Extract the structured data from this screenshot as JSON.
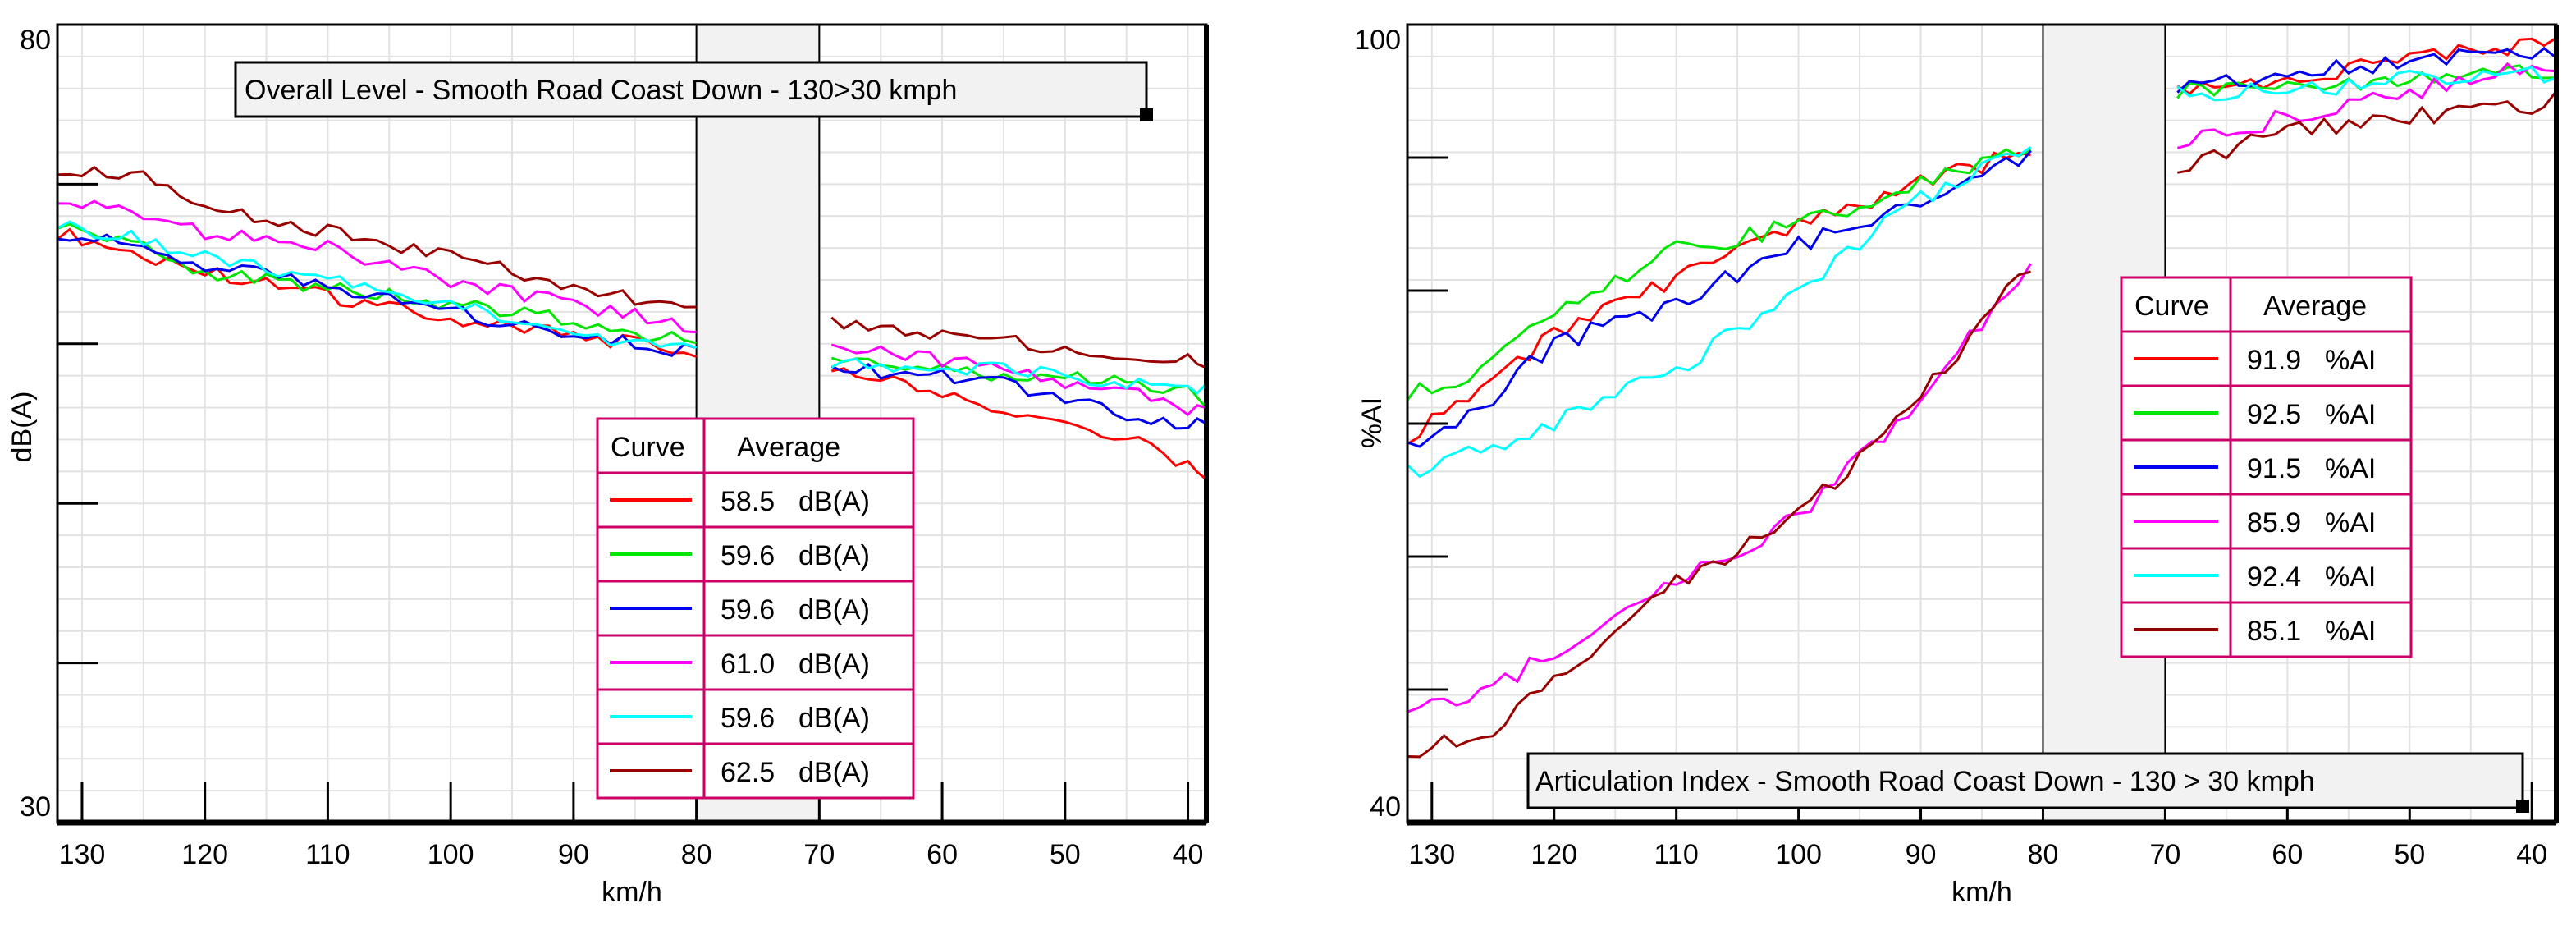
{
  "chart_data": [
    {
      "type": "line",
      "title": "Overall Level - Smooth Road Coast Down - 130>30 kmph",
      "xlabel": "km/h",
      "ylabel": "dB(A)",
      "xlim": [
        132,
        38.5
      ],
      "ylim": [
        30,
        80
      ],
      "x_ticks": [
        "130",
        "120",
        "110",
        "100",
        "90",
        "80",
        "70",
        "60",
        "50",
        "40"
      ],
      "y_tick_labels": [
        "30",
        "80"
      ],
      "gap_region": [
        80,
        70
      ],
      "legend": {
        "header": [
          "Curve",
          "Average"
        ],
        "position": "bottom-right",
        "entries": [
          {
            "average": "58.5",
            "unit": "dB(A)"
          },
          {
            "average": "59.6",
            "unit": "dB(A)"
          },
          {
            "average": "59.6",
            "unit": "dB(A)"
          },
          {
            "average": "61.0",
            "unit": "dB(A)"
          },
          {
            "average": "59.6",
            "unit": "dB(A)"
          },
          {
            "average": "62.5",
            "unit": "dB(A)"
          }
        ]
      },
      "series": [
        {
          "color": "#ff0000",
          "x": [
            132,
            125,
            120,
            110,
            100,
            90,
            80,
            70,
            60,
            55,
            50,
            45,
            40,
            38.5
          ],
          "y": [
            67,
            65.5,
            64.5,
            63,
            61.5,
            60.5,
            59.5,
            58.5,
            57,
            55.5,
            55,
            54,
            52.5,
            51.5
          ]
        },
        {
          "color": "#00e600",
          "x": [
            132,
            125,
            120,
            110,
            100,
            90,
            80,
            70,
            60,
            55,
            50,
            45,
            40,
            38.5
          ],
          "y": [
            67.5,
            66,
            64.5,
            63.5,
            62.5,
            61.5,
            60,
            59,
            58.5,
            58,
            58,
            57.5,
            57,
            56
          ]
        },
        {
          "color": "#0000ee",
          "x": [
            132,
            125,
            120,
            110,
            100,
            90,
            80,
            70,
            60,
            55,
            50,
            45,
            40,
            38.5
          ],
          "y": [
            67,
            66,
            65,
            63.5,
            62,
            60.5,
            59.5,
            58.5,
            58,
            57.5,
            56.5,
            55.5,
            55,
            55
          ]
        },
        {
          "color": "#ff00ff",
          "x": [
            132,
            125,
            120,
            110,
            100,
            90,
            80,
            70,
            60,
            55,
            50,
            45,
            40,
            38.5
          ],
          "y": [
            69,
            68,
            67,
            66,
            64,
            62.5,
            61,
            60,
            59,
            58.5,
            57.5,
            57,
            56,
            56
          ]
        },
        {
          "color": "#00ffff",
          "x": [
            132,
            125,
            120,
            110,
            100,
            90,
            80,
            70,
            60,
            55,
            50,
            45,
            40,
            38.5
          ],
          "y": [
            67.5,
            66.5,
            65.5,
            64,
            62.5,
            60.5,
            59.5,
            59,
            58.5,
            58.5,
            58,
            57.5,
            57,
            57.5
          ]
        },
        {
          "color": "#990000",
          "x": [
            132,
            125,
            120,
            110,
            100,
            90,
            80,
            70,
            60,
            55,
            50,
            45,
            40,
            38.5
          ],
          "y": [
            71,
            70.5,
            68.5,
            67,
            65.5,
            63.5,
            62,
            61.5,
            60.5,
            60.5,
            59.5,
            59,
            59,
            58.5
          ]
        }
      ]
    },
    {
      "type": "line",
      "title": "Articulation Index - Smooth Road Coast Down - 130 > 30 kmph",
      "xlabel": "km/h",
      "ylabel": "%AI",
      "xlim": [
        132,
        38
      ],
      "ylim": [
        40,
        100
      ],
      "x_ticks": [
        "130",
        "120",
        "110",
        "100",
        "90",
        "80",
        "70",
        "60",
        "50",
        "40"
      ],
      "y_tick_labels": [
        "40",
        "100"
      ],
      "gap_region": [
        80,
        70
      ],
      "legend": {
        "header": [
          "Curve",
          "Average"
        ],
        "position": "middle-right",
        "entries": [
          {
            "average": "91.9",
            "unit": "%AI"
          },
          {
            "average": "92.5",
            "unit": "%AI"
          },
          {
            "average": "91.5",
            "unit": "%AI"
          },
          {
            "average": "85.9",
            "unit": "%AI"
          },
          {
            "average": "92.4",
            "unit": "%AI"
          },
          {
            "average": "85.1",
            "unit": "%AI"
          }
        ]
      },
      "series": [
        {
          "color": "#ff0000",
          "x": [
            132,
            125,
            120,
            110,
            100,
            90,
            80,
            70,
            60,
            50,
            40,
            38
          ],
          "y": [
            69,
            73,
            77,
            81,
            85,
            88,
            91,
            95,
            96,
            97.5,
            98.5,
            99
          ]
        },
        {
          "color": "#00e600",
          "x": [
            132,
            125,
            120,
            110,
            100,
            90,
            80,
            70,
            60,
            50,
            40,
            38
          ],
          "y": [
            72,
            74.5,
            78.5,
            83,
            85,
            88,
            91,
            95,
            95.5,
            96,
            96.5,
            96
          ]
        },
        {
          "color": "#0000ee",
          "x": [
            132,
            125,
            120,
            110,
            100,
            90,
            80,
            70,
            60,
            50,
            40,
            38
          ],
          "y": [
            68,
            72,
            76,
            79,
            83.5,
            86.5,
            90.5,
            95,
            96,
            97.5,
            98,
            97.5
          ]
        },
        {
          "color": "#ff00ff",
          "x": [
            132,
            125,
            120,
            110,
            100,
            90,
            80,
            70,
            60,
            50,
            40,
            38
          ],
          "y": [
            48,
            50,
            53,
            58,
            63,
            72,
            83,
            91,
            93,
            95,
            97,
            96.5
          ]
        },
        {
          "color": "#00ffff",
          "x": [
            132,
            125,
            120,
            110,
            100,
            90,
            80,
            70,
            60,
            50,
            40,
            38
          ],
          "y": [
            66.5,
            68,
            70,
            74,
            80,
            87,
            91,
            95,
            95,
            96,
            96.5,
            96
          ]
        },
        {
          "color": "#990000",
          "x": [
            132,
            125,
            120,
            110,
            100,
            90,
            80,
            70,
            60,
            50,
            40,
            38
          ],
          "y": [
            45,
            47,
            51,
            58,
            63,
            72,
            83,
            89,
            92,
            93,
            94,
            95
          ]
        }
      ]
    }
  ]
}
